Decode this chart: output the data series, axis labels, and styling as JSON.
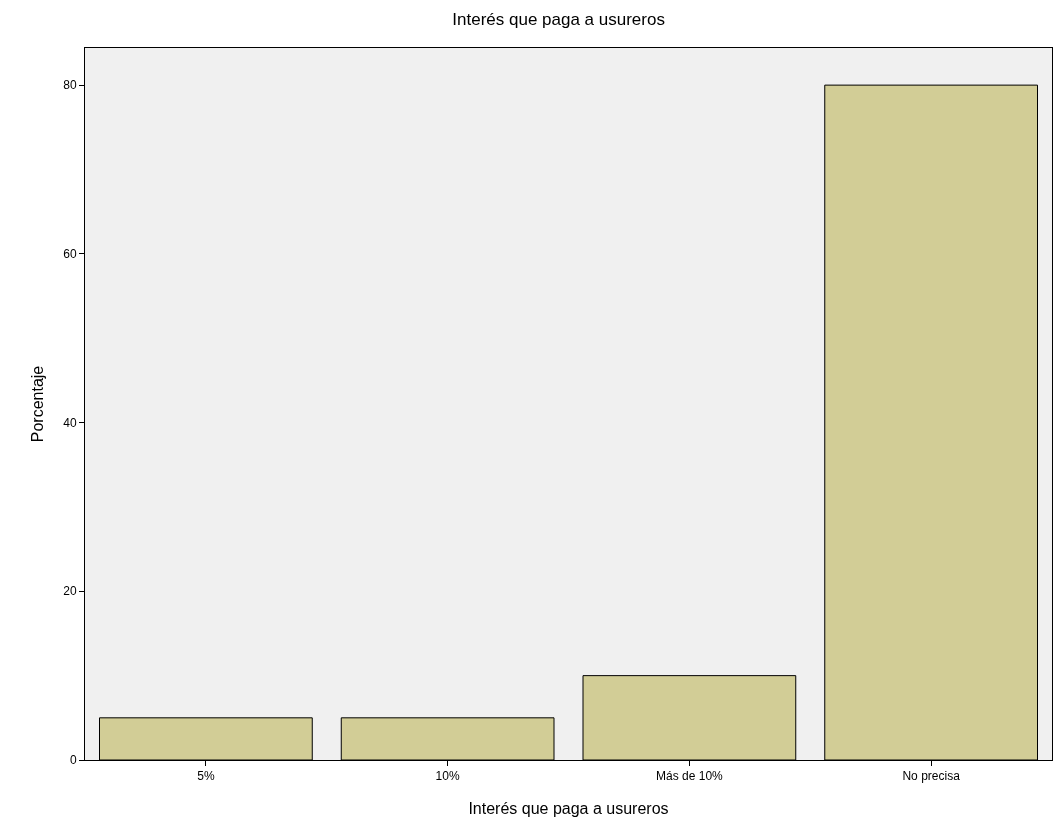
{
  "chart_data": {
    "type": "bar",
    "title": "Interés que paga a usureros",
    "xlabel": "Interés que paga a usureros",
    "ylabel": "Porcentaje",
    "categories": [
      "5%",
      "10%",
      "Más de 10%",
      "No precisa"
    ],
    "values": [
      5,
      5,
      10,
      80
    ],
    "color": "#d2cd96",
    "ylim": [
      0,
      84.4
    ],
    "yticks": [
      0,
      20,
      40,
      60,
      80
    ],
    "grid": false,
    "legend": false
  }
}
